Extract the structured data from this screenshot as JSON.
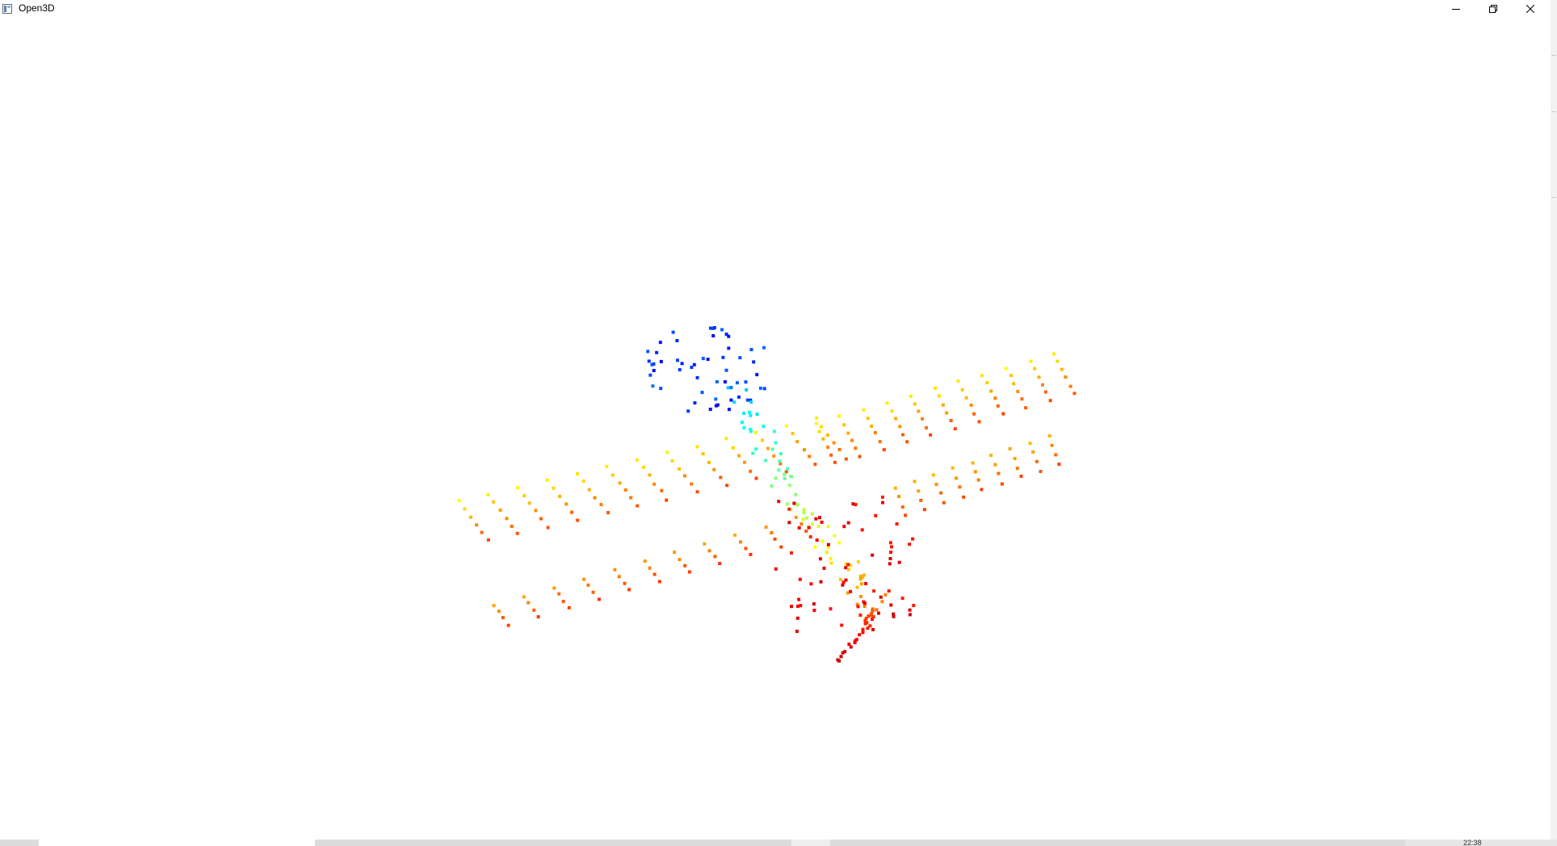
{
  "window": {
    "title": "Open3D",
    "app_icon": "open3d-window-icon",
    "buttons": {
      "minimize_icon": "minimize-icon",
      "maximize_icon": "restore-icon",
      "close_icon": "close-icon"
    }
  },
  "viewport": {
    "background": "#ffffff",
    "content": "point-cloud",
    "colormap": "jet",
    "colormap_stops": [
      "#00008f",
      "#0000ff",
      "#00ffff",
      "#7fff7f",
      "#ffff00",
      "#ff8000",
      "#ff0000",
      "#800000"
    ]
  },
  "taskbar": {
    "clock": "22:38"
  }
}
